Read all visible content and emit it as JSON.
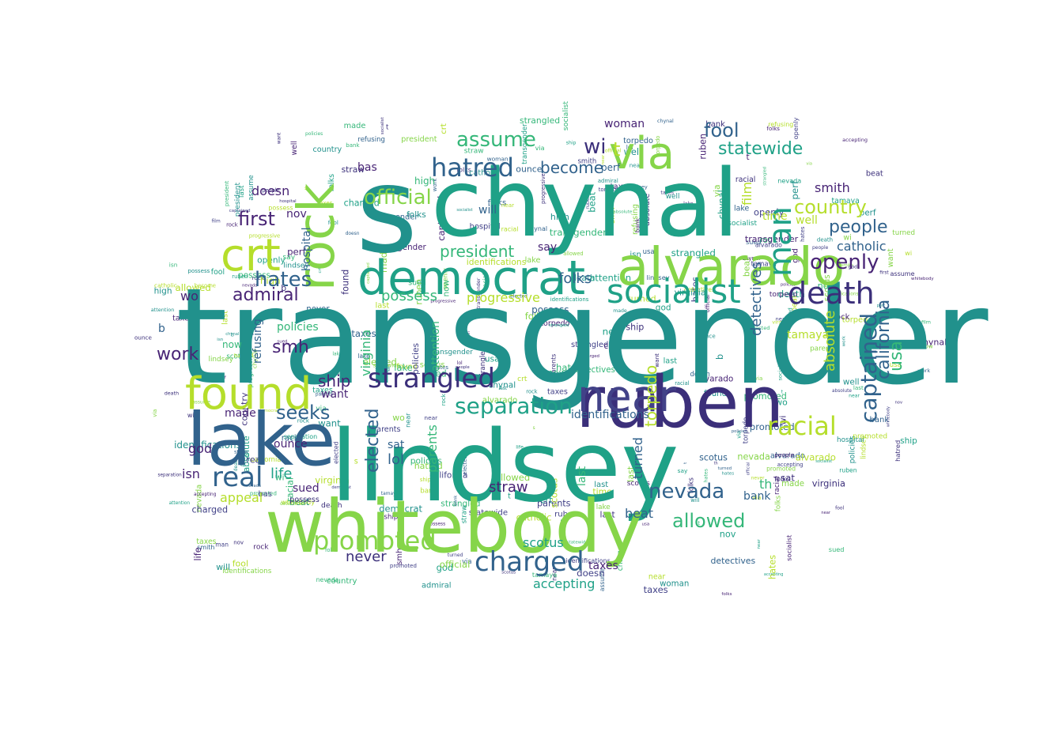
{
  "palette": {
    "navy": "#3b2f7a",
    "indigo": "#424288",
    "blue": "#31628c",
    "teal": "#21918c",
    "sea": "#1fa187",
    "green": "#35b779",
    "lime": "#86d549",
    "yellow": "#b5de2b",
    "purple": "#482475"
  },
  "words": [
    {
      "text": "transgender",
      "color": "teal"
    },
    {
      "text": "chynal",
      "color": "sea"
    },
    {
      "text": "lindsey",
      "color": "sea"
    },
    {
      "text": "s",
      "color": "teal"
    },
    {
      "text": "whitebody",
      "color": "lime"
    },
    {
      "text": "ruben",
      "color": "navy"
    },
    {
      "text": "lake",
      "color": "blue"
    },
    {
      "text": "found",
      "color": "yellow"
    },
    {
      "text": "near",
      "color": "indigo"
    },
    {
      "text": "alvarado",
      "color": "lime"
    },
    {
      "text": "democrat",
      "color": "sea"
    },
    {
      "text": "rock",
      "color": "lime"
    },
    {
      "text": "crt",
      "color": "yellow"
    },
    {
      "text": "via",
      "color": "lime"
    },
    {
      "text": "socialist",
      "color": "sea"
    },
    {
      "text": "death",
      "color": "navy"
    },
    {
      "text": "strangled",
      "color": "navy"
    },
    {
      "text": "charged",
      "color": "blue"
    },
    {
      "text": "promoted",
      "color": "lime"
    },
    {
      "text": "hatred",
      "color": "blue"
    },
    {
      "text": "real",
      "color": "blue"
    },
    {
      "text": "man",
      "color": "sea"
    },
    {
      "text": "racial",
      "color": "yellow"
    },
    {
      "text": "country",
      "color": "yellow"
    },
    {
      "text": "separation",
      "color": "sea"
    },
    {
      "text": "hates",
      "color": "blue"
    },
    {
      "text": "official",
      "color": "lime"
    },
    {
      "text": "assume",
      "color": "green"
    },
    {
      "text": "fool",
      "color": "blue"
    },
    {
      "text": "statewide",
      "color": "sea"
    },
    {
      "text": "captained",
      "color": "blue"
    },
    {
      "text": "openly",
      "color": "purple"
    },
    {
      "text": "people",
      "color": "blue"
    },
    {
      "text": "allowed",
      "color": "green"
    },
    {
      "text": "nevada",
      "color": "blue"
    },
    {
      "text": "work",
      "color": "purple"
    },
    {
      "text": "admiral",
      "color": "purple"
    },
    {
      "text": "smh",
      "color": "purple"
    },
    {
      "text": "first",
      "color": "purple"
    },
    {
      "text": "president",
      "color": "green"
    },
    {
      "text": "elected",
      "color": "blue"
    },
    {
      "text": "seeks",
      "color": "blue"
    },
    {
      "text": "california",
      "color": "blue"
    },
    {
      "text": "usa",
      "color": "green"
    },
    {
      "text": "wi",
      "color": "navy"
    },
    {
      "text": "ship",
      "color": "purple"
    },
    {
      "text": "folks",
      "color": "blue"
    },
    {
      "text": "become",
      "color": "blue"
    },
    {
      "text": "torpedo",
      "color": "yellow"
    },
    {
      "text": "possess",
      "color": "green"
    },
    {
      "text": "progressive",
      "color": "yellow"
    },
    {
      "text": "identifications",
      "color": "blue"
    },
    {
      "text": "detectives",
      "color": "blue"
    },
    {
      "text": "absolute",
      "color": "yellow"
    },
    {
      "text": "policies",
      "color": "green"
    },
    {
      "text": "virginia",
      "color": "green"
    },
    {
      "text": "catholic",
      "color": "blue"
    },
    {
      "text": "smith",
      "color": "purple"
    },
    {
      "text": "tamaya",
      "color": "yellow"
    },
    {
      "text": "parents",
      "color": "green"
    },
    {
      "text": "turned",
      "color": "blue"
    },
    {
      "text": "lol",
      "color": "blue"
    },
    {
      "text": "life",
      "color": "sea"
    },
    {
      "text": "appeal",
      "color": "yellow"
    },
    {
      "text": "scotus",
      "color": "sea"
    },
    {
      "text": "accepting",
      "color": "sea"
    },
    {
      "text": "taxes",
      "color": "purple"
    },
    {
      "text": "never",
      "color": "navy"
    },
    {
      "text": "straw",
      "color": "purple"
    },
    {
      "text": "beat",
      "color": "blue"
    },
    {
      "text": "sued",
      "color": "purple"
    },
    {
      "text": "ounce",
      "color": "purple"
    },
    {
      "text": "doesn",
      "color": "purple"
    },
    {
      "text": "god",
      "color": "purple"
    },
    {
      "text": "isn",
      "color": "purple"
    },
    {
      "text": "refusing",
      "color": "blue"
    },
    {
      "text": "hospital",
      "color": "blue"
    },
    {
      "text": "bank",
      "color": "blue"
    },
    {
      "text": "film",
      "color": "yellow"
    },
    {
      "text": "time",
      "color": "yellow"
    },
    {
      "text": "well",
      "color": "yellow"
    },
    {
      "text": "made",
      "color": "purple"
    },
    {
      "text": "wo",
      "color": "purple"
    },
    {
      "text": "nov",
      "color": "purple"
    },
    {
      "text": "bas",
      "color": "purple"
    },
    {
      "text": "will",
      "color": "blue"
    },
    {
      "text": "want",
      "color": "purple"
    },
    {
      "text": "woman",
      "color": "purple"
    },
    {
      "text": "last",
      "color": "green"
    },
    {
      "text": "say",
      "color": "purple"
    },
    {
      "text": "sat",
      "color": "blue"
    },
    {
      "text": "perf",
      "color": "blue"
    },
    {
      "text": "now",
      "color": "green"
    },
    {
      "text": "b",
      "color": "blue"
    },
    {
      "text": "t",
      "color": "yellow"
    },
    {
      "text": "th",
      "color": "green"
    },
    {
      "text": "high",
      "color": "green"
    },
    {
      "text": "attention",
      "color": "green"
    }
  ]
}
